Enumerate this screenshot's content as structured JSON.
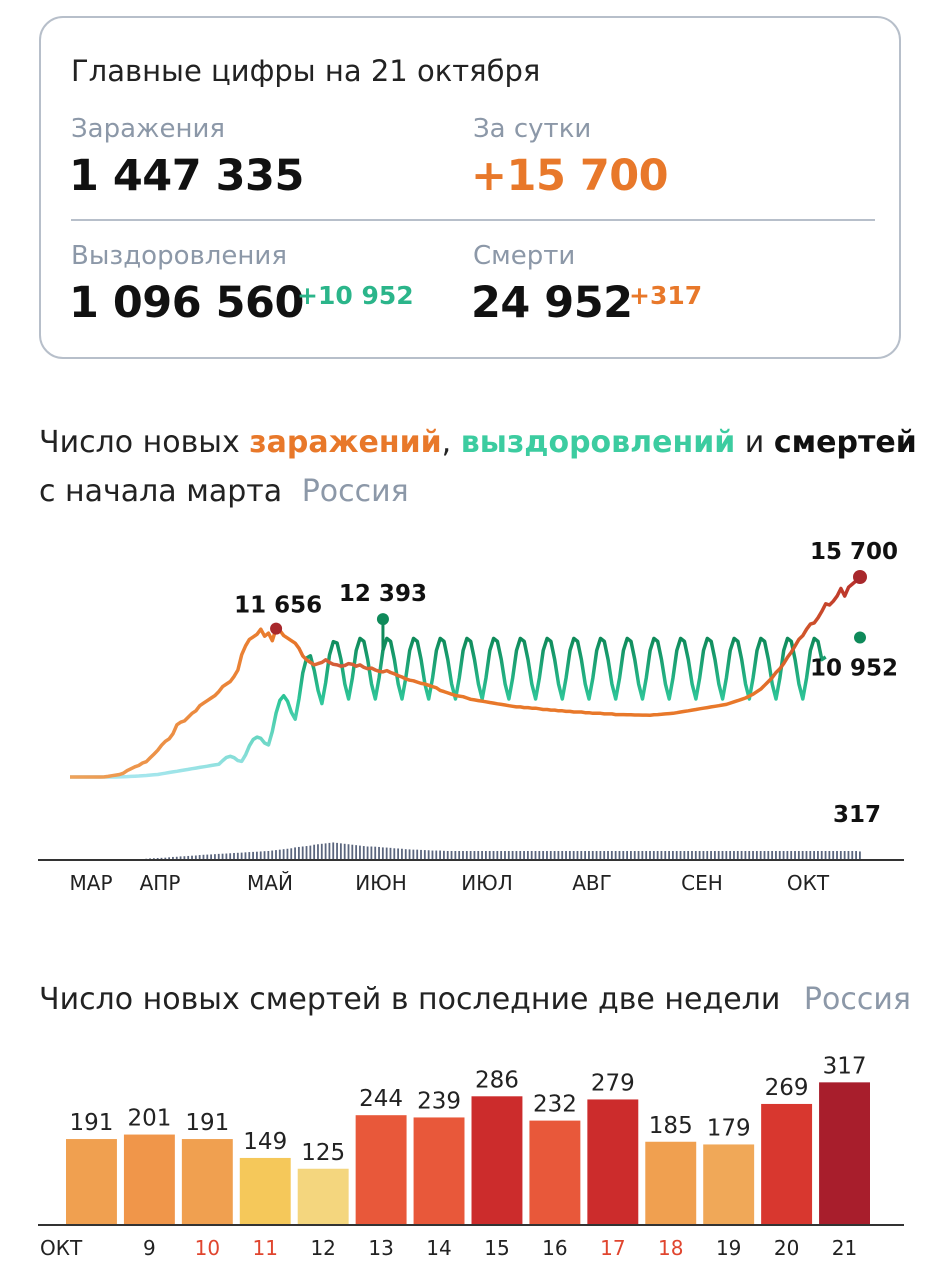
{
  "summary": {
    "title": "Главные цифры на 21 октября",
    "infections": {
      "label": "Заражения",
      "value": "1 447 335"
    },
    "per_day": {
      "label": "За сутки",
      "value": "+15 700"
    },
    "recoveries": {
      "label": "Выздоровления",
      "value": "1 096 560",
      "delta": "+10 952"
    },
    "deaths": {
      "label": "Смерти",
      "value": "24 952",
      "delta": "+317"
    }
  },
  "chart1": {
    "title_parts": {
      "a": "Число новых ",
      "b": "заражений",
      "c": ", ",
      "d": "выздоровлений",
      "e": " и ",
      "f": "смертей"
    },
    "line2": "с начала марта",
    "region": "Россия"
  },
  "chart2": {
    "title": "Число новых смертей в последние две недели",
    "region": "Россия"
  },
  "colors": {
    "infections": "#e8782a",
    "infections_peak": "#a8282c",
    "recoveries": "#2fc79a",
    "recoveries_light": "#a6e6ee",
    "recoveries_peak": "#0f8a5a",
    "deaths": "#3d4a66"
  },
  "chart_data": [
    {
      "type": "line",
      "x_labels": [
        "МАР",
        "АПР",
        "МАЙ",
        "ИЮН",
        "ИЮЛ",
        "АВГ",
        "СЕН",
        "ОКТ"
      ],
      "annotations": [
        "11 656",
        "12 393",
        "15 700",
        "10 952",
        "317"
      ],
      "series": [
        {
          "name": "заражений",
          "values": [
            0,
            0,
            0,
            0,
            0,
            0,
            0,
            0,
            0,
            10,
            50,
            100,
            150,
            200,
            300,
            500,
            650,
            800,
            900,
            1100,
            1200,
            1500,
            1800,
            2100,
            2500,
            2800,
            3000,
            3400,
            4100,
            4300,
            4400,
            4700,
            5000,
            5200,
            5600,
            5800,
            6000,
            6200,
            6400,
            6700,
            7100,
            7300,
            7500,
            7900,
            8400,
            9600,
            10300,
            10800,
            11000,
            11200,
            11600,
            11050,
            11300,
            10700,
            11650,
            11500,
            11100,
            10900,
            10700,
            10500,
            10100,
            9500,
            9200,
            9000,
            8800,
            8900,
            9000,
            9200,
            9000,
            8850,
            8800,
            8700,
            8750,
            8900,
            8850,
            8700,
            8800,
            8600,
            8500,
            8550,
            8400,
            8300,
            8250,
            8350,
            8200,
            8100,
            7950,
            7850,
            7700,
            7600,
            7550,
            7450,
            7350,
            7300,
            7200,
            7100,
            7000,
            6800,
            6700,
            6600,
            6500,
            6400,
            6350,
            6300,
            6200,
            6100,
            6050,
            6000,
            5950,
            5900,
            5850,
            5800,
            5750,
            5700,
            5650,
            5600,
            5550,
            5500,
            5500,
            5450,
            5450,
            5400,
            5400,
            5350,
            5300,
            5300,
            5250,
            5250,
            5200,
            5200,
            5150,
            5150,
            5100,
            5100,
            5100,
            5050,
            5050,
            5000,
            5000,
            5000,
            4950,
            4950,
            4950,
            4900,
            4900,
            4900,
            4880,
            4880,
            4870,
            4870,
            4860,
            4860,
            4850,
            4880,
            4900,
            4920,
            4950,
            4980,
            5000,
            5050,
            5100,
            5150,
            5200,
            5250,
            5300,
            5350,
            5400,
            5450,
            5500,
            5550,
            5600,
            5650,
            5700,
            5800,
            5900,
            6000,
            6100,
            6200,
            6350,
            6500,
            6700,
            6900,
            7200,
            7500,
            7800,
            8200,
            8500,
            8900,
            9400,
            9800,
            10300,
            10800,
            11100,
            11600,
            12000,
            12100,
            12500,
            13000,
            13600,
            13500,
            13800,
            14200,
            14800,
            14200,
            14900,
            15150,
            15400,
            15700
          ]
        },
        {
          "name": "выздоровлений",
          "values": [
            0,
            0,
            0,
            0,
            0,
            0,
            0,
            0,
            0,
            0,
            0,
            0,
            0,
            10,
            20,
            30,
            50,
            60,
            80,
            100,
            120,
            150,
            170,
            200,
            250,
            300,
            350,
            400,
            450,
            500,
            550,
            600,
            650,
            700,
            750,
            800,
            850,
            900,
            950,
            1000,
            1100,
            1200,
            1300,
            1400,
            1500,
            1700,
            1900,
            2100,
            2300,
            2500,
            2800,
            3100,
            3500,
            3900,
            4300,
            4700,
            5100,
            5500,
            5900,
            6300,
            6700,
            7000,
            7300,
            7600,
            7700,
            7900,
            8000,
            8100,
            8200,
            8300,
            8400,
            8500,
            8500,
            8500,
            8500,
            8500,
            8500,
            8500,
            8500,
            8500,
            8500,
            8500,
            8500,
            8500,
            8500,
            8500,
            8500,
            8500,
            8500,
            8500,
            8500,
            8500,
            8500,
            8500,
            8500,
            8500,
            8500,
            8500,
            8500,
            8500,
            8500,
            8500,
            8500,
            8500,
            8500,
            8500,
            8500,
            8500,
            8500,
            8500,
            8500,
            8500,
            8500,
            8500,
            8500,
            8500,
            8500,
            8500,
            8500,
            8500,
            8500,
            8500,
            8500,
            8500,
            8500,
            8500,
            8500,
            8500,
            8500,
            8500,
            8500,
            8500,
            8500,
            8500,
            8500,
            8500,
            8500,
            8500,
            8500,
            8500,
            8500,
            8500,
            8500,
            8500,
            8500,
            8500,
            8500,
            8500,
            8500,
            8500,
            8500,
            8500,
            8500,
            8500,
            8500,
            8500,
            8500,
            8500,
            8500,
            8500,
            8500,
            8500,
            8500,
            8500,
            8500,
            8500,
            8500,
            8500,
            8500,
            8500,
            8500,
            8500,
            8500,
            8500,
            8500,
            8500,
            8500,
            8500,
            8500,
            8500,
            8500,
            8500,
            8500,
            8500,
            8500,
            8500,
            8500,
            8500,
            8500,
            8500,
            8500,
            8500,
            8500,
            8500,
            8500,
            8500,
            8500,
            8500,
            10952
          ]
        },
        {
          "name": "смертей",
          "values": [
            0,
            0,
            0,
            0,
            0,
            0,
            0,
            0,
            0,
            0,
            0,
            0,
            0,
            0,
            2,
            3,
            4,
            5,
            7,
            10,
            14,
            18,
            20,
            22,
            24,
            26,
            30,
            34,
            36,
            40,
            42,
            45,
            48,
            50,
            55,
            58,
            60,
            62,
            65,
            68,
            70,
            72,
            75,
            78,
            80,
            82,
            85,
            88,
            90,
            92,
            95,
            98,
            100,
            105,
            110,
            115,
            120,
            125,
            130,
            140,
            145,
            150,
            155,
            160,
            170,
            175,
            180,
            185,
            190,
            195,
            190,
            185,
            180,
            175,
            170,
            165,
            160,
            155,
            150,
            150,
            148,
            145,
            140,
            138,
            135,
            130,
            128,
            125,
            120,
            118,
            115,
            115,
            112,
            110,
            108,
            105,
            105,
            105,
            102,
            100,
            100,
            100,
            100,
            100,
            100,
            100,
            100,
            100,
            100,
            100,
            100,
            100,
            100,
            100,
            100,
            100,
            100,
            100,
            100,
            100,
            100,
            100,
            100,
            100,
            100,
            100,
            100,
            100,
            100,
            100,
            100,
            100,
            100,
            100,
            100,
            100,
            100,
            100,
            100,
            100,
            100,
            100,
            100,
            100,
            100,
            100,
            100,
            100,
            100,
            100,
            100,
            100,
            100,
            100,
            100,
            100,
            100,
            100,
            100,
            100,
            100,
            100,
            100,
            100,
            100,
            100,
            100,
            100,
            100,
            100,
            100,
            100,
            100,
            100,
            100,
            100,
            100,
            100,
            100,
            100,
            100,
            100,
            100,
            100,
            100,
            100,
            100,
            100,
            100,
            100,
            100,
            100,
            100,
            100,
            100,
            100,
            100,
            100,
            100,
            100,
            100,
            100,
            100,
            100,
            100,
            100,
            100,
            100,
            100,
            100,
            100,
            100,
            100,
            100,
            100,
            100,
            317
          ]
        }
      ]
    },
    {
      "type": "bar",
      "x_label": "ОКТ",
      "categories": [
        "8",
        "9",
        "10",
        "11",
        "12",
        "13",
        "14",
        "15",
        "16",
        "17",
        "18",
        "19",
        "20",
        "21"
      ],
      "tick_labels": [
        "ОКТ",
        "9",
        "10",
        "11",
        "12",
        "13",
        "14",
        "15",
        "16",
        "17",
        "18",
        "19",
        "20",
        "21"
      ],
      "weekend_ticks": [
        "10",
        "11",
        "17",
        "18"
      ],
      "values": [
        191,
        201,
        191,
        149,
        125,
        244,
        239,
        286,
        232,
        279,
        185,
        179,
        269,
        317
      ],
      "colors": [
        "#f0a050",
        "#f0964a",
        "#f0a050",
        "#f5c85a",
        "#f4d67e",
        "#e8583a",
        "#e8583a",
        "#cc2c2c",
        "#e8583a",
        "#cc2c2c",
        "#f0a050",
        "#f0a858",
        "#d8372f",
        "#a81e2c"
      ]
    }
  ]
}
